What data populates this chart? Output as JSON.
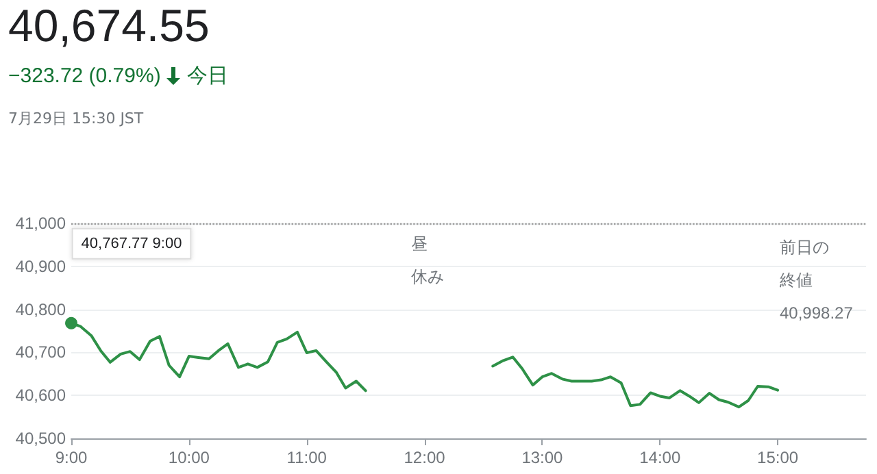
{
  "chart_data": {
    "type": "line",
    "title": "40,674.55",
    "subtitle": "−323.72 (0.79%)",
    "annotations": [
      "今日",
      "7月29日 15:30 JST",
      "昼休み",
      "40,767.77 9:00"
    ],
    "x": [
      9,
      9.08,
      9.17,
      9.25,
      9.33,
      9.42,
      9.5,
      9.58,
      9.67,
      9.75,
      9.83,
      9.92,
      10,
      10.08,
      10.17,
      10.25,
      10.33,
      10.42,
      10.5,
      10.58,
      10.67,
      10.75,
      10.83,
      10.92,
      11,
      11.08,
      11.17,
      11.25,
      11.33,
      11.42,
      11.5,
      12,
      12.58,
      12.67,
      12.75,
      12.83,
      12.92,
      13,
      13.08,
      13.17,
      13.25,
      13.33,
      13.42,
      13.5,
      13.58,
      13.67,
      13.75,
      13.83,
      13.92,
      14,
      14.08,
      14.17,
      14.25,
      14.33,
      14.42,
      14.5,
      14.58,
      14.67,
      14.75,
      14.83,
      14.92,
      15
    ],
    "series": [
      {
        "color": "#2e9147",
        "values": [
          40768,
          40760,
          40739,
          40704,
          40677,
          40696,
          40702,
          40683,
          40726,
          40737,
          40670,
          40643,
          40691,
          40688,
          40685,
          40704,
          40720,
          40665,
          40673,
          40665,
          40678,
          40723,
          40731,
          40747,
          40699,
          40704,
          40677,
          40654,
          40617,
          40633,
          40611,
          null,
          40668,
          40681,
          40689,
          40662,
          40624,
          40643,
          40651,
          40638,
          40633,
          40633,
          40633,
          40636,
          40643,
          40629,
          40576,
          40579,
          40606,
          40598,
          40594,
          40611,
          40598,
          40583,
          40605,
          40590,
          40584,
          40573,
          40588,
          40621,
          40620,
          40612
        ]
      }
    ],
    "xlim": [
      9,
      15.75
    ],
    "xticks": [
      {
        "value": 9,
        "label": "9:00"
      },
      {
        "value": 10,
        "label": "10:00"
      },
      {
        "value": 11,
        "label": "11:00"
      },
      {
        "value": 12,
        "label": "12:00"
      },
      {
        "value": 13,
        "label": "13:00"
      },
      {
        "value": 14,
        "label": "14:00"
      },
      {
        "value": 15,
        "label": "15:00"
      }
    ],
    "ylim": [
      40500,
      41000
    ],
    "yticks": [
      {
        "value": 40500,
        "label": "40,500"
      },
      {
        "value": 40600,
        "label": "40,600"
      },
      {
        "value": 40700,
        "label": "40,700"
      },
      {
        "value": 40800,
        "label": "40,800"
      },
      {
        "value": 40900,
        "label": "40,900"
      },
      {
        "value": 41000,
        "label": "41,000"
      }
    ],
    "ref_lines": [
      {
        "axis": "y",
        "value": 40998.27,
        "label": "前日の終値 40,998.27",
        "line_style": "dotted",
        "color": "#9e9e9e"
      }
    ],
    "grid": "y",
    "marker": "none",
    "line_style": "solid"
  }
}
